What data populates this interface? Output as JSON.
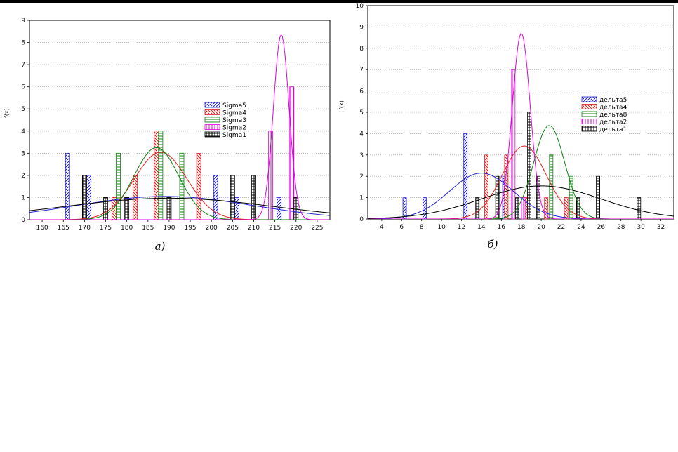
{
  "chart_data": [
    {
      "type": "bar",
      "caption": "а)",
      "ylabel": "f(x)",
      "xlim": [
        157,
        228
      ],
      "ylim": [
        0,
        9
      ],
      "xticks": [
        160,
        165,
        170,
        175,
        180,
        185,
        190,
        195,
        200,
        205,
        210,
        215,
        220,
        225
      ],
      "yticks": [
        0,
        1,
        2,
        3,
        4,
        5,
        6,
        7,
        8,
        9
      ],
      "grid": true,
      "legend_position": "right",
      "series": [
        {
          "name": "Sigma5",
          "color": "#2424d0",
          "hatch": "diag",
          "bars": [
            [
              166,
              3
            ],
            [
              171,
              2
            ],
            [
              177,
              1
            ],
            [
              201,
              2
            ],
            [
              206,
              1
            ],
            [
              216,
              1
            ]
          ],
          "curve": {
            "mu": 189,
            "sd": 21,
            "peak": 1.05
          }
        },
        {
          "name": "Sigma4",
          "color": "#e02020",
          "hatch": "diag2",
          "bars": [
            [
              177,
              1
            ],
            [
              182,
              2
            ],
            [
              187,
              4
            ],
            [
              197,
              3
            ]
          ],
          "curve": {
            "mu": 188,
            "sd": 6.2,
            "peak": 3.05
          }
        },
        {
          "name": "Sigma3",
          "color": "#108010",
          "hatch": "horiz",
          "bars": [
            [
              178,
              3
            ],
            [
              188,
              4
            ],
            [
              193,
              3
            ]
          ],
          "curve": {
            "mu": 187,
            "sd": 5.3,
            "peak": 3.25
          }
        },
        {
          "name": "Sigma2",
          "color": "#e000e0",
          "hatch": "vert",
          "bars": [
            [
              214,
              4
            ],
            [
              219,
              6
            ]
          ],
          "curve": {
            "mu": 216.5,
            "sd": 1.85,
            "peak": 8.35
          }
        },
        {
          "name": "Sigma1",
          "color": "#000000",
          "hatch": "grid",
          "bars": [
            [
              170,
              2
            ],
            [
              175,
              1
            ],
            [
              180,
              1
            ],
            [
              190,
              1
            ],
            [
              205,
              2
            ],
            [
              210,
              2
            ],
            [
              220,
              1
            ]
          ],
          "curve": {
            "mu": 190,
            "sd": 25,
            "peak": 0.97
          }
        }
      ]
    },
    {
      "type": "bar",
      "caption": "б)",
      "ylabel": "f(x)",
      "xlim": [
        2.6,
        33.3
      ],
      "ylim": [
        0,
        10
      ],
      "xticks": [
        4,
        6,
        8,
        10,
        12,
        14,
        16,
        18,
        20,
        22,
        24,
        26,
        28,
        30,
        32
      ],
      "yticks": [
        0,
        1,
        2,
        3,
        4,
        5,
        6,
        7,
        8,
        9,
        10
      ],
      "grid": true,
      "legend_position": "right",
      "series": [
        {
          "name": "дельта5",
          "color": "#2424d0",
          "hatch": "diag",
          "bars": [
            [
              6.3,
              1
            ],
            [
              8.3,
              1
            ],
            [
              12.4,
              4
            ],
            [
              16.3,
              2
            ]
          ],
          "curve": {
            "mu": 14,
            "sd": 3.2,
            "peak": 2.15
          }
        },
        {
          "name": "дельта4",
          "color": "#e02020",
          "hatch": "diag2",
          "bars": [
            [
              14.5,
              3
            ],
            [
              16.5,
              3
            ],
            [
              18.5,
              1
            ],
            [
              20.5,
              1
            ],
            [
              22.5,
              1
            ]
          ],
          "curve": {
            "mu": 18.3,
            "sd": 2.2,
            "peak": 3.42
          }
        },
        {
          "name": "дельта8",
          "color": "#108010",
          "hatch": "horiz",
          "bars": [
            [
              18.8,
              2
            ],
            [
              21,
              3
            ],
            [
              23,
              2
            ]
          ],
          "curve": {
            "mu": 20.8,
            "sd": 1.55,
            "peak": 4.38
          }
        },
        {
          "name": "дельта2",
          "color": "#e000e0",
          "hatch": "vert",
          "bars": [
            [
              17.2,
              7
            ],
            [
              18.2,
              1
            ]
          ],
          "curve": {
            "mu": 18,
            "sd": 0.9,
            "peak": 8.7
          }
        },
        {
          "name": "дельта1",
          "color": "#000000",
          "hatch": "grid",
          "bars": [
            [
              13.6,
              1
            ],
            [
              15.6,
              2
            ],
            [
              17.6,
              1
            ],
            [
              18.8,
              5
            ],
            [
              19.7,
              2
            ],
            [
              23.7,
              1
            ],
            [
              25.7,
              2
            ],
            [
              29.8,
              1
            ]
          ],
          "curve": {
            "mu": 20,
            "sd": 6,
            "peak": 1.55
          }
        }
      ]
    }
  ]
}
